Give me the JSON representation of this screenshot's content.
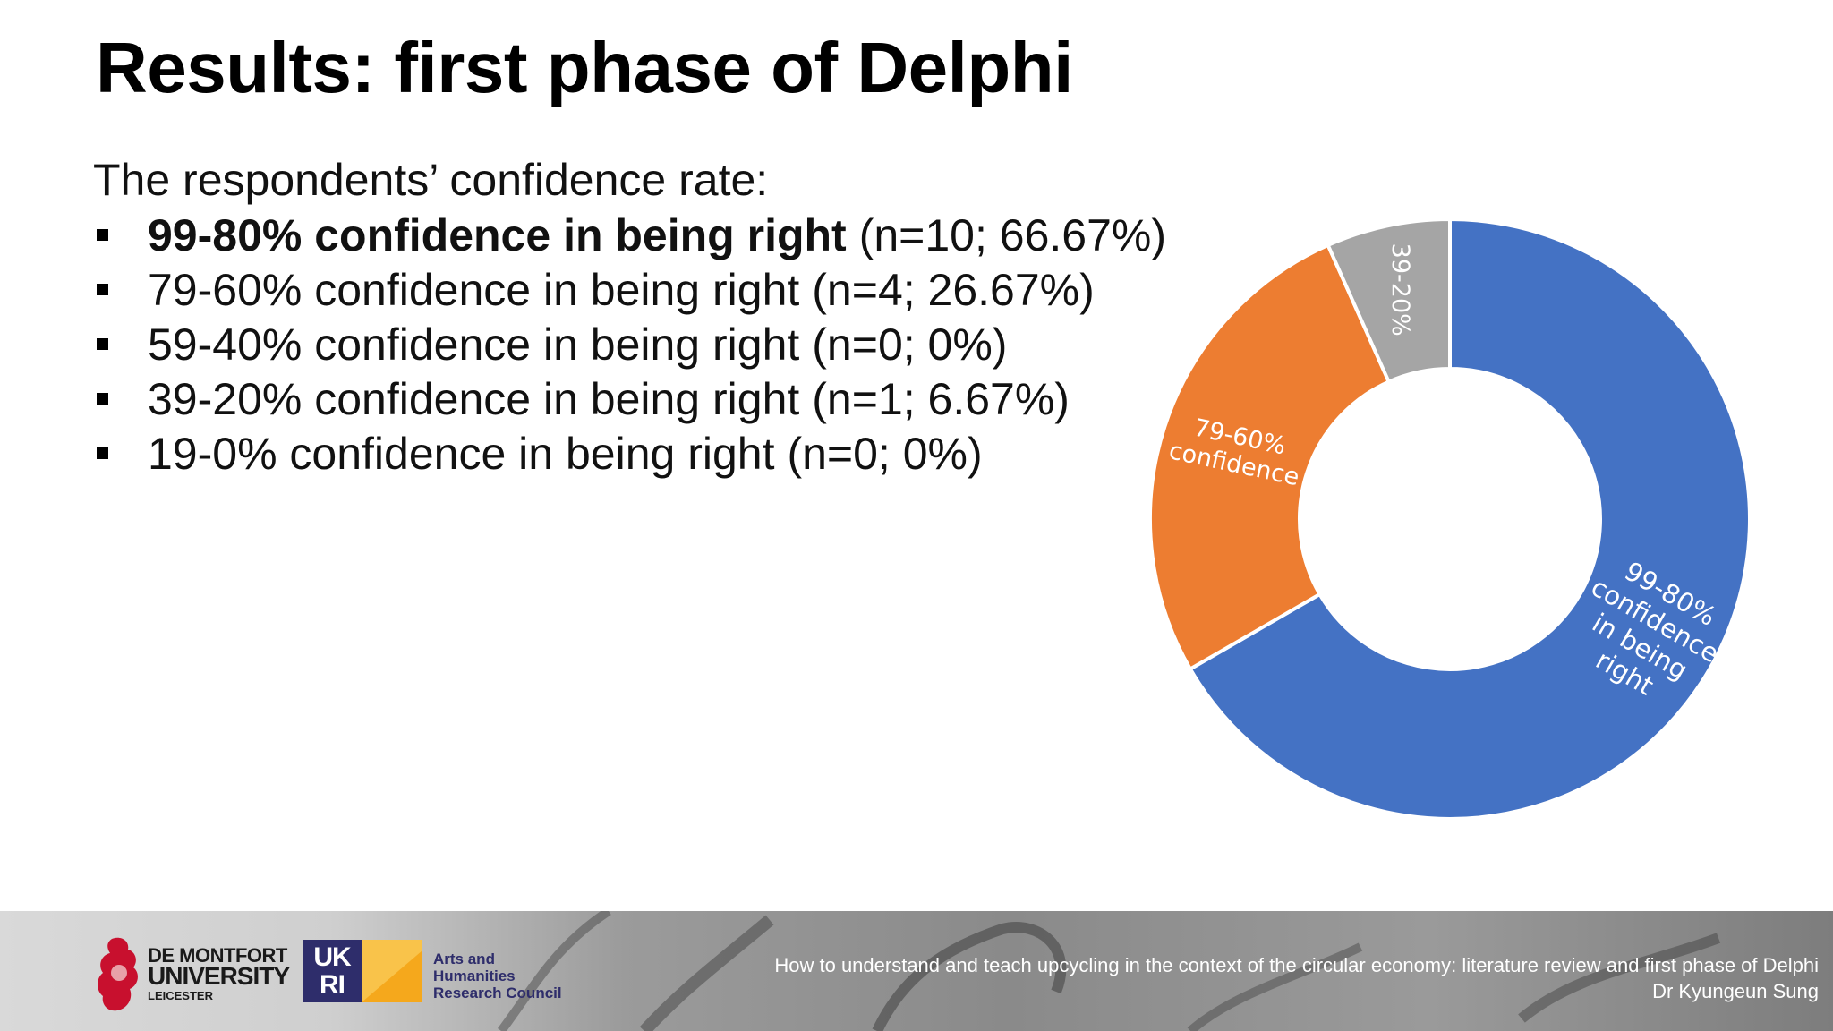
{
  "slide": {
    "title": "Results: first phase of Delphi",
    "intro": "The respondents’ confidence rate:"
  },
  "bullets": [
    {
      "label": "99-80% confidence in being right",
      "detail": "(n=10; 66.67%)"
    },
    {
      "label": "79-60% confidence in being right",
      "detail": "(n=4; 26.67%)"
    },
    {
      "label": "59-40% confidence in being right",
      "detail": "(n=0; 0%)"
    },
    {
      "label": "39-20% confidence in being right",
      "detail": "(n=1; 6.67%)"
    },
    {
      "label": "19-0% confidence in being right",
      "detail": "(n=0; 0%)"
    }
  ],
  "chart_data": {
    "type": "pie",
    "variant": "donut",
    "title": "",
    "slices": [
      {
        "label_lines": [
          "99-80%",
          "confidence",
          "in being",
          "right"
        ],
        "value": 10,
        "percent": 66.67,
        "color": "#4472c4"
      },
      {
        "label_lines": [
          "79-60%",
          "confidence"
        ],
        "value": 4,
        "percent": 26.67,
        "color": "#ed7d31"
      },
      {
        "label_lines": [
          "39-20%"
        ],
        "value": 1,
        "percent": 6.67,
        "color": "#a5a5a5"
      }
    ],
    "start": "12 o'clock",
    "direction": "clockwise",
    "legend": "none"
  },
  "footer": {
    "dmu": {
      "line1": "DE MONTFORT",
      "line2": "UNIVERSITY",
      "line3": "LEICESTER"
    },
    "ukri": {
      "line1": "UK",
      "line2": "RI"
    },
    "ahrc": [
      "Arts and",
      "Humanities",
      "Research Council"
    ],
    "title": "How to understand and teach upcycling in the context of the circular economy: literature review and first phase of Delphi",
    "author": "Dr Kyungeun Sung"
  },
  "colors": {
    "blue": "#4472c4",
    "orange": "#ed7d31",
    "gray": "#a5a5a5",
    "ukri_navy": "#2e2d6b",
    "ahrc_yellow": "#f5a81c",
    "dmu_red": "#c8102e"
  },
  "icons": {
    "dmu_logo": "lion-rampant-icon",
    "ahrc_logo": "ahrc-square-icon"
  }
}
